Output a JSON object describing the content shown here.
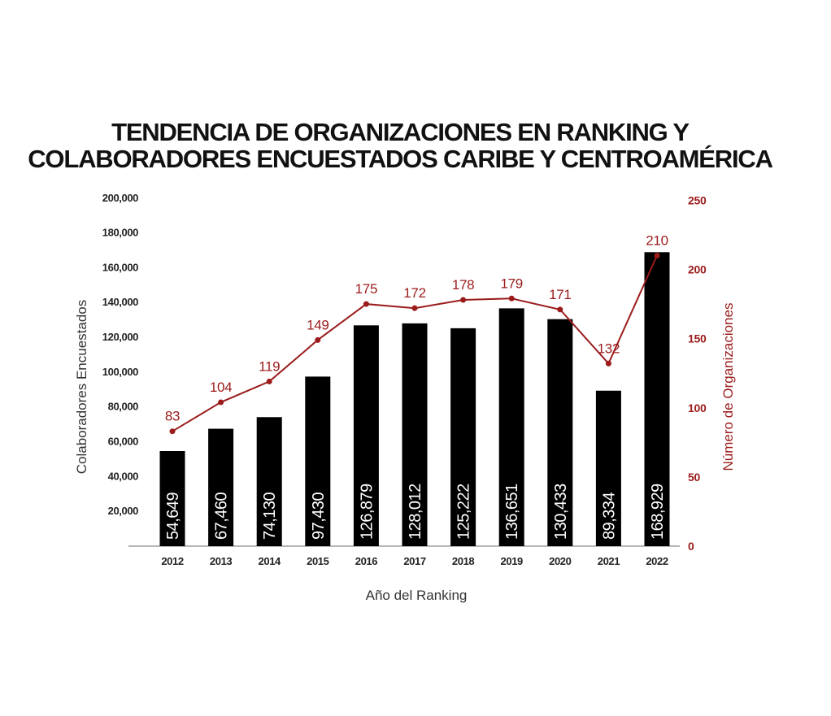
{
  "colors": {
    "bar": "#000000",
    "line": "#9b1b1b",
    "axis": "#9e9e9e",
    "text": "#111111"
  },
  "chart_data": {
    "type": "bar",
    "title_lines": [
      "TENDENCIA DE ORGANIZACIONES EN RANKING Y",
      "COLABORADORES ENCUESTADOS CARIBE Y CENTROAMÉRICA"
    ],
    "xlabel": "Año del Ranking",
    "ylabel_left": "Colaboradores Encuestados",
    "ylabel_right": "Número de Organizaciones",
    "categories": [
      "2012",
      "2013",
      "2014",
      "2015",
      "2016",
      "2017",
      "2018",
      "2019",
      "2020",
      "2021",
      "2022"
    ],
    "ylim_left": [
      0,
      200000
    ],
    "ylim_right": [
      0,
      250
    ],
    "yticks_left": [
      20000,
      40000,
      60000,
      80000,
      100000,
      120000,
      140000,
      160000,
      180000,
      200000
    ],
    "yticks_left_labels": [
      "20,000",
      "40,000",
      "60,000",
      "80,000",
      "100,000",
      "120,000",
      "140,000",
      "160,000",
      "180,000",
      "200,000"
    ],
    "yticks_right": [
      0,
      50,
      100,
      150,
      200,
      250
    ],
    "yticks_right_labels": [
      "0",
      "50",
      "100",
      "150",
      "200",
      "250"
    ],
    "grid": false,
    "series": [
      {
        "type": "bar",
        "axis": "left",
        "values": [
          54649,
          67460,
          74130,
          97430,
          126879,
          128012,
          125222,
          136651,
          130433,
          89334,
          168929
        ],
        "labels": [
          "54,649",
          "67,460",
          "74,130",
          "97,430",
          "126,879",
          "128,012",
          "125,222",
          "136,651",
          "130,433",
          "89,334",
          "168,929"
        ]
      },
      {
        "type": "line",
        "axis": "right",
        "values": [
          83,
          104,
          119,
          149,
          175,
          172,
          178,
          179,
          171,
          132,
          210
        ],
        "labels": [
          "83",
          "104",
          "119",
          "149",
          "175",
          "172",
          "178",
          "179",
          "171",
          "132",
          "210"
        ]
      }
    ]
  }
}
